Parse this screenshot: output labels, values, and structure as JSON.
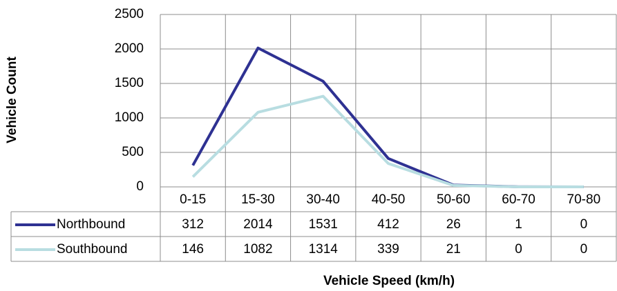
{
  "chart_data": {
    "type": "line",
    "categories": [
      "0-15",
      "15-30",
      "30-40",
      "40-50",
      "50-60",
      "60-70",
      "70-80"
    ],
    "series": [
      {
        "name": "Northbound",
        "color": "#2e3192",
        "values": [
          312,
          2014,
          1531,
          412,
          26,
          1,
          0
        ]
      },
      {
        "name": "Southbound",
        "color": "#b8dde1",
        "values": [
          146,
          1082,
          1314,
          339,
          21,
          0,
          0
        ]
      }
    ],
    "ylim": [
      0,
      2500
    ],
    "yticks": [
      0,
      500,
      1000,
      1500,
      2000,
      2500
    ],
    "grid": true,
    "xlabel": "Vehicle Speed (km/h)",
    "ylabel": "Vehicle Count",
    "data_table": true
  }
}
